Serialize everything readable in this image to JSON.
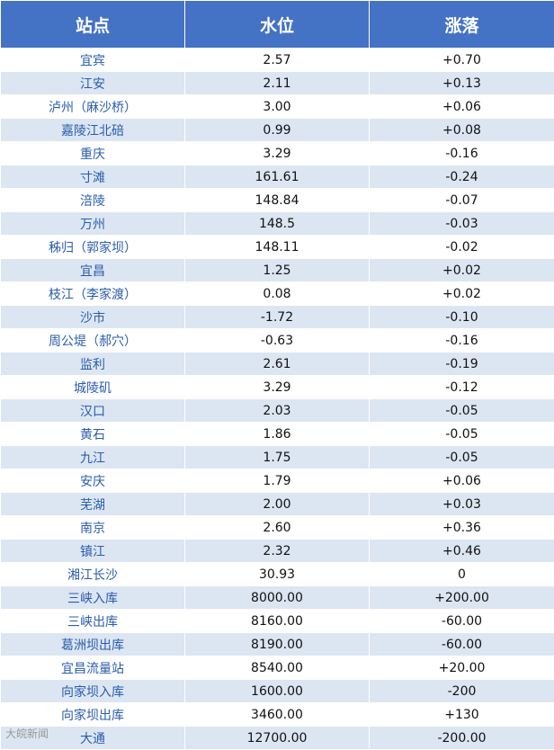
{
  "table": {
    "header": [
      "站点",
      "水位",
      "涨落"
    ],
    "rows": [
      [
        "宜宾",
        "2.57",
        "+0.70"
      ],
      [
        "江安",
        "2.11",
        "+0.13"
      ],
      [
        "泸州（麻沙桥）",
        "3.00",
        "+0.06"
      ],
      [
        "嘉陵江北碚",
        "0.99",
        "+0.08"
      ],
      [
        "重庆",
        "3.29",
        "-0.16"
      ],
      [
        "寸滩",
        "161.61",
        "-0.24"
      ],
      [
        "涪陵",
        "148.84",
        "-0.07"
      ],
      [
        "万州",
        "148.5",
        "-0.03"
      ],
      [
        "秭归（郭家坝）",
        "148.11",
        "-0.02"
      ],
      [
        "宜昌",
        "1.25",
        "+0.02"
      ],
      [
        "枝江（李家渡）",
        "0.08",
        "+0.02"
      ],
      [
        "沙市",
        "-1.72",
        "-0.10"
      ],
      [
        "周公堤（郝穴）",
        "-0.63",
        "-0.16"
      ],
      [
        "监利",
        "2.61",
        "-0.19"
      ],
      [
        "城陵矶",
        "3.29",
        "-0.12"
      ],
      [
        "汉口",
        "2.03",
        "-0.05"
      ],
      [
        "黄石",
        "1.86",
        "-0.05"
      ],
      [
        "九江",
        "1.75",
        "-0.05"
      ],
      [
        "安庆",
        "1.79",
        "+0.06"
      ],
      [
        "芜湖",
        "2.00",
        "+0.03"
      ],
      [
        "南京",
        "2.60",
        "+0.36"
      ],
      [
        "镇江",
        "2.32",
        "+0.46"
      ],
      [
        "湘江长沙",
        "30.93",
        "0"
      ],
      [
        "三峡入库",
        "8000.00",
        "+200.00"
      ],
      [
        "三峡出库",
        "8160.00",
        "-60.00"
      ],
      [
        "葛洲坝出库",
        "8190.00",
        "-60.00"
      ],
      [
        "宜昌流量站",
        "8540.00",
        "+20.00"
      ],
      [
        "向家坝入库",
        "1600.00",
        "-200"
      ],
      [
        "向家坝出库",
        "3460.00",
        "+130"
      ],
      [
        "大通",
        "12700.00",
        "-200.00"
      ]
    ]
  },
  "watermark": "大皖新闻"
}
